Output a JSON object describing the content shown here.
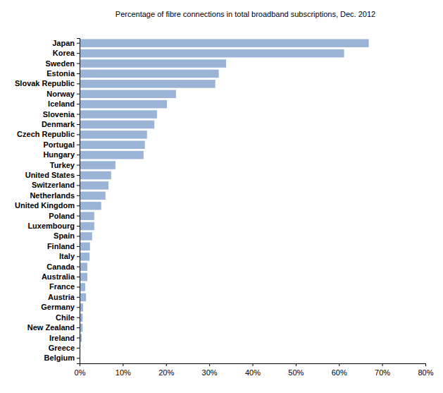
{
  "chart_data": {
    "type": "bar",
    "orientation": "horizontal",
    "title": "Percentage of fibre connections in total broadband subscriptions, Dec. 2012",
    "categories": [
      "Japan",
      "Korea",
      "Sweden",
      "Estonia",
      "Slovak Republic",
      "Norway",
      "Iceland",
      "Slovenia",
      "Denmark",
      "Czech Republic",
      "Portugal",
      "Hungary",
      "Turkey",
      "United States",
      "Switzerland",
      "Netherlands",
      "United Kingdom",
      "Poland",
      "Luxembourg",
      "Spain",
      "Finland",
      "Italy",
      "Canada",
      "Australia",
      "France",
      "Austria",
      "Germany",
      "Chile",
      "New Zealand",
      "Ireland",
      "Greece",
      "Belgium"
    ],
    "values": [
      66.9,
      61.2,
      33.9,
      32.2,
      31.4,
      22.3,
      20.2,
      17.9,
      17.3,
      15.6,
      15.1,
      14.8,
      8.3,
      7.3,
      6.7,
      6.0,
      5.0,
      3.4,
      3.4,
      2.9,
      2.4,
      2.3,
      1.8,
      1.8,
      1.3,
      1.5,
      0.8,
      0.7,
      0.7,
      0.5,
      0.2,
      0.1
    ],
    "color": "#9bb4d6",
    "xlim": [
      0,
      80
    ],
    "xticks": [
      {
        "value": 0,
        "label": "0%"
      },
      {
        "value": 10,
        "label": "10%"
      },
      {
        "value": 20,
        "label": "20%"
      },
      {
        "value": 30,
        "label": "30%"
      },
      {
        "value": 40,
        "label": "40%"
      },
      {
        "value": 50,
        "label": "50%"
      },
      {
        "value": 60,
        "label": "60%"
      },
      {
        "value": 70,
        "label": "70%"
      },
      {
        "value": 80,
        "label": "80%"
      }
    ],
    "grid": false
  }
}
